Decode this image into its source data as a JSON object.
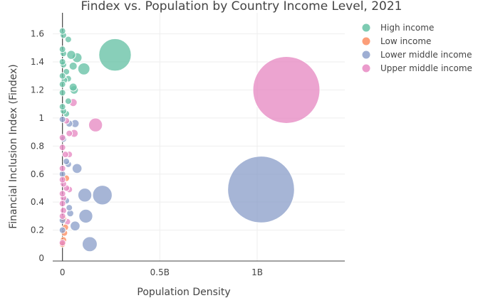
{
  "chart_data": {
    "type": "scatter",
    "title": "Findex vs. Population by Country Income Level, 2021",
    "xlabel": "Population Density",
    "ylabel": "Financial Inclusion Index (Findex)",
    "xlim": [
      -0.05,
      1.45
    ],
    "ylim": [
      -0.02,
      1.75
    ],
    "x_unit": "billions",
    "grid": true,
    "legend_position": "top-right",
    "x_ticks": [
      {
        "value": 0,
        "label": "0"
      },
      {
        "value": 0.5,
        "label": "0.5B"
      },
      {
        "value": 1,
        "label": "1B"
      }
    ],
    "y_ticks": [
      {
        "value": 0,
        "label": "0"
      },
      {
        "value": 0.2,
        "label": "0.2"
      },
      {
        "value": 0.4,
        "label": "0.4"
      },
      {
        "value": 0.6,
        "label": "0.6"
      },
      {
        "value": 0.8,
        "label": "0.8"
      },
      {
        "value": 1,
        "label": "1"
      },
      {
        "value": 1.2,
        "label": "1.2"
      },
      {
        "value": 1.4,
        "label": "1.4"
      },
      {
        "value": 1.6,
        "label": "1.6"
      }
    ],
    "series": [
      {
        "name": "High income",
        "color": "#66c2a5",
        "points": [
          {
            "x": 0.0,
            "y": 1.62,
            "pop": 0.005
          },
          {
            "x": 0.005,
            "y": 1.59,
            "pop": 0.006
          },
          {
            "x": 0.03,
            "y": 1.56,
            "pop": 0.01
          },
          {
            "x": 0.0,
            "y": 1.49,
            "pop": 0.004
          },
          {
            "x": 0.005,
            "y": 1.46,
            "pop": 0.006
          },
          {
            "x": 0.045,
            "y": 1.45,
            "pop": 0.025
          },
          {
            "x": 0.075,
            "y": 1.43,
            "pop": 0.03
          },
          {
            "x": 0.27,
            "y": 1.45,
            "pop": 0.33
          },
          {
            "x": 0.0,
            "y": 1.4,
            "pop": 0.004
          },
          {
            "x": 0.005,
            "y": 1.38,
            "pop": 0.005
          },
          {
            "x": 0.055,
            "y": 1.37,
            "pop": 0.02
          },
          {
            "x": 0.11,
            "y": 1.35,
            "pop": 0.045
          },
          {
            "x": 0.02,
            "y": 1.33,
            "pop": 0.008
          },
          {
            "x": 0.0,
            "y": 1.3,
            "pop": 0.004
          },
          {
            "x": 0.03,
            "y": 1.28,
            "pop": 0.01
          },
          {
            "x": 0.01,
            "y": 1.27,
            "pop": 0.007
          },
          {
            "x": 0.0,
            "y": 1.24,
            "pop": 0.003
          },
          {
            "x": 0.055,
            "y": 1.22,
            "pop": 0.02
          },
          {
            "x": 0.06,
            "y": 1.2,
            "pop": 0.022
          },
          {
            "x": 0.0,
            "y": 1.18,
            "pop": 0.004
          },
          {
            "x": 0.03,
            "y": 1.12,
            "pop": 0.012
          },
          {
            "x": 0.0,
            "y": 1.08,
            "pop": 0.004
          },
          {
            "x": 0.005,
            "y": 1.05,
            "pop": 0.005
          },
          {
            "x": 0.02,
            "y": 1.03,
            "pop": 0.008
          }
        ]
      },
      {
        "name": "Low income",
        "color": "#fc8d62",
        "points": [
          {
            "x": 0.005,
            "y": 0.28,
            "pop": 0.006
          },
          {
            "x": 0.01,
            "y": 0.18,
            "pop": 0.007
          },
          {
            "x": 0.005,
            "y": 0.13,
            "pop": 0.005
          },
          {
            "x": 0.0,
            "y": 0.1,
            "pop": 0.004
          },
          {
            "x": 0.015,
            "y": 0.22,
            "pop": 0.008
          },
          {
            "x": 0.02,
            "y": 0.57,
            "pop": 0.009
          }
        ]
      },
      {
        "name": "Lower middle income",
        "color": "#8da0cb",
        "points": [
          {
            "x": 0.065,
            "y": 0.96,
            "pop": 0.02
          },
          {
            "x": 0.035,
            "y": 0.96,
            "pop": 0.015
          },
          {
            "x": 0.0,
            "y": 0.99,
            "pop": 0.004
          },
          {
            "x": 0.005,
            "y": 0.85,
            "pop": 0.005
          },
          {
            "x": 0.075,
            "y": 0.64,
            "pop": 0.03
          },
          {
            "x": 0.02,
            "y": 0.69,
            "pop": 0.008
          },
          {
            "x": 0.03,
            "y": 0.67,
            "pop": 0.01
          },
          {
            "x": 0.0,
            "y": 0.6,
            "pop": 0.004
          },
          {
            "x": 0.115,
            "y": 0.45,
            "pop": 0.06
          },
          {
            "x": 0.205,
            "y": 0.45,
            "pop": 0.12
          },
          {
            "x": 1.02,
            "y": 0.49,
            "pop": 1.4
          },
          {
            "x": 0.02,
            "y": 0.41,
            "pop": 0.008
          },
          {
            "x": 0.035,
            "y": 0.36,
            "pop": 0.012
          },
          {
            "x": 0.04,
            "y": 0.32,
            "pop": 0.015
          },
          {
            "x": 0.12,
            "y": 0.3,
            "pop": 0.06
          },
          {
            "x": 0.0,
            "y": 0.27,
            "pop": 0.004
          },
          {
            "x": 0.065,
            "y": 0.23,
            "pop": 0.03
          },
          {
            "x": 0.0,
            "y": 0.2,
            "pop": 0.004
          },
          {
            "x": 0.14,
            "y": 0.1,
            "pop": 0.07
          }
        ]
      },
      {
        "name": "Upper middle income",
        "color": "#e78ac3",
        "points": [
          {
            "x": 1.15,
            "y": 1.2,
            "pop": 1.41
          },
          {
            "x": 0.17,
            "y": 0.95,
            "pop": 0.06
          },
          {
            "x": 0.055,
            "y": 1.11,
            "pop": 0.02
          },
          {
            "x": 0.02,
            "y": 0.98,
            "pop": 0.008
          },
          {
            "x": 0.06,
            "y": 0.89,
            "pop": 0.02
          },
          {
            "x": 0.035,
            "y": 0.89,
            "pop": 0.012
          },
          {
            "x": 0.0,
            "y": 0.86,
            "pop": 0.004
          },
          {
            "x": 0.0,
            "y": 0.79,
            "pop": 0.004
          },
          {
            "x": 0.035,
            "y": 0.74,
            "pop": 0.012
          },
          {
            "x": 0.015,
            "y": 0.74,
            "pop": 0.008
          },
          {
            "x": 0.0,
            "y": 0.64,
            "pop": 0.004
          },
          {
            "x": 0.0,
            "y": 0.56,
            "pop": 0.003
          },
          {
            "x": 0.005,
            "y": 0.53,
            "pop": 0.005
          },
          {
            "x": 0.035,
            "y": 0.49,
            "pop": 0.012
          },
          {
            "x": 0.02,
            "y": 0.5,
            "pop": 0.009
          },
          {
            "x": 0.0,
            "y": 0.46,
            "pop": 0.004
          },
          {
            "x": 0.005,
            "y": 0.43,
            "pop": 0.005
          },
          {
            "x": 0.0,
            "y": 0.39,
            "pop": 0.004
          },
          {
            "x": 0.005,
            "y": 0.34,
            "pop": 0.005
          },
          {
            "x": 0.0,
            "y": 0.3,
            "pop": 0.004
          },
          {
            "x": 0.025,
            "y": 0.26,
            "pop": 0.01
          },
          {
            "x": 0.0,
            "y": 0.11,
            "pop": 0.003
          }
        ]
      }
    ]
  }
}
